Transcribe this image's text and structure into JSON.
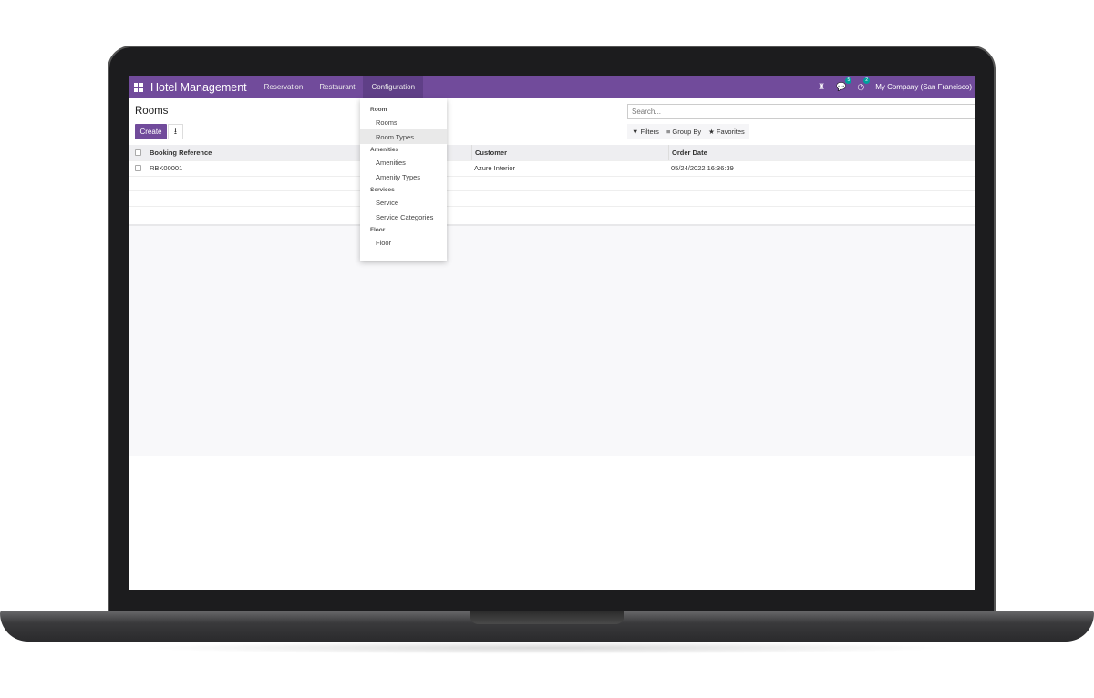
{
  "nav": {
    "brand": "Hotel Management",
    "menus": [
      "Reservation",
      "Restaurant",
      "Configuration"
    ],
    "active_menu": "Configuration",
    "messages_badge": "5",
    "activities_badge": "2",
    "company": "My Company (San Francisco)",
    "accent": "#714b9b"
  },
  "page": {
    "title": "Rooms",
    "create_label": "Create",
    "search_placeholder": "Search...",
    "filters": "Filters",
    "group_by": "Group By",
    "favorites": "Favorites"
  },
  "table": {
    "headers": [
      "Booking Reference",
      "Customer",
      "Order Date"
    ],
    "rows": [
      [
        "RBK00001",
        "Azure Interior",
        "05/24/2022 16:36:39"
      ]
    ]
  },
  "dropdown": {
    "sections": [
      {
        "header": "Room",
        "items": [
          "Rooms",
          "Room Types"
        ]
      },
      {
        "header": "Amenities",
        "items": [
          "Amenities",
          "Amenity Types"
        ]
      },
      {
        "header": "Services",
        "items": [
          "Service",
          "Service Categories"
        ]
      },
      {
        "header": "Floor",
        "items": [
          "Floor"
        ]
      }
    ],
    "highlighted": "Room Types"
  }
}
